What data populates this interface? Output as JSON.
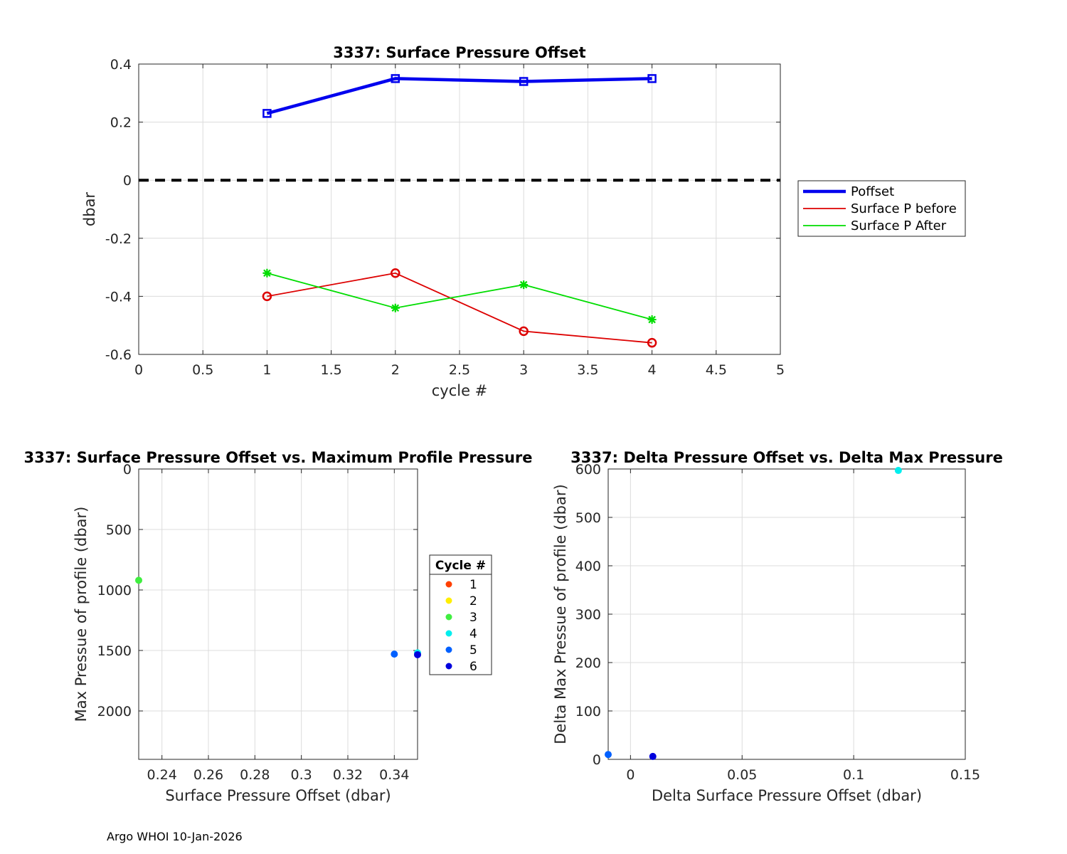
{
  "figure": {
    "footer": "Argo WHOI 10-Jan-2026"
  },
  "chart_data": [
    {
      "id": "top",
      "type": "line",
      "title": "3337: Surface Pressure Offset",
      "xlabel": "cycle #",
      "ylabel": "dbar",
      "xlim": [
        0,
        5
      ],
      "ylim": [
        -0.6,
        0.4
      ],
      "xticks": [
        0,
        0.5,
        1,
        1.5,
        2,
        2.5,
        3,
        3.5,
        4,
        4.5,
        5
      ],
      "yticks": [
        -0.6,
        -0.4,
        -0.2,
        0,
        0.2,
        0.4
      ],
      "xtick_labels": [
        "0",
        "0.5",
        "1",
        "1.5",
        "2",
        "2.5",
        "3",
        "3.5",
        "4",
        "4.5",
        "5"
      ],
      "ytick_labels": [
        "-0.6",
        "-0.4",
        "-0.2",
        "0",
        "0.2",
        "0.4"
      ],
      "grid": true,
      "zero_line": {
        "y": 0,
        "color": "#000000",
        "style": "dashed"
      },
      "legend_position": "outside-right",
      "series": [
        {
          "name": "Poffset",
          "color": "#0000ee",
          "marker": "square",
          "x": [
            1,
            2,
            3,
            4
          ],
          "y": [
            0.23,
            0.35,
            0.34,
            0.35
          ]
        },
        {
          "name": "Surface P before",
          "color": "#dd0000",
          "marker": "circle",
          "x": [
            1,
            2,
            3,
            4
          ],
          "y": [
            -0.4,
            -0.32,
            -0.52,
            -0.56
          ]
        },
        {
          "name": "Surface P After",
          "color": "#00dd00",
          "marker": "star",
          "x": [
            1,
            2,
            3,
            4
          ],
          "y": [
            -0.32,
            -0.44,
            -0.36,
            -0.48
          ]
        }
      ]
    },
    {
      "id": "bottom-left",
      "type": "scatter",
      "title": "3337: Surface Pressure Offset vs. Maximum Profile Pressure",
      "xlabel": "Surface Pressure Offset (dbar)",
      "ylabel": "Max Pressue of profile (dbar)",
      "xlim": [
        0.23,
        0.35
      ],
      "ylim": [
        0,
        2400
      ],
      "y_reversed": true,
      "xticks": [
        0.24,
        0.26,
        0.28,
        0.3,
        0.32,
        0.34
      ],
      "yticks": [
        0,
        500,
        1000,
        1500,
        2000
      ],
      "xtick_labels": [
        "0.24",
        "0.26",
        "0.28",
        "0.3",
        "0.32",
        "0.34"
      ],
      "ytick_labels": [
        "0",
        "500",
        "1000",
        "1500",
        "2000"
      ],
      "grid": true,
      "legend_title": "Cycle #",
      "legend_position": "right",
      "legend": [
        {
          "label": "1",
          "color": "#ff4000"
        },
        {
          "label": "2",
          "color": "#ffee00"
        },
        {
          "label": "3",
          "color": "#40ee40"
        },
        {
          "label": "4",
          "color": "#00eeee"
        },
        {
          "label": "5",
          "color": "#0060ff"
        },
        {
          "label": "6",
          "color": "#0000dd"
        }
      ],
      "points": [
        {
          "cycle": "3",
          "x": 0.23,
          "y": 920,
          "color": "#40ee40"
        },
        {
          "cycle": "4",
          "x": 0.35,
          "y": 1520,
          "color": "#00eeee"
        },
        {
          "cycle": "5",
          "x": 0.34,
          "y": 1530,
          "color": "#0060ff"
        },
        {
          "cycle": "6",
          "x": 0.35,
          "y": 1535,
          "color": "#0000dd"
        }
      ]
    },
    {
      "id": "bottom-right",
      "type": "scatter",
      "title": "3337: Delta Pressure Offset vs. Delta Max Pressure",
      "xlabel": "Delta Surface Pressure Offset (dbar)",
      "ylabel": "Delta Max Pressue of profile (dbar)",
      "xlim": [
        -0.01,
        0.15
      ],
      "ylim": [
        0,
        600
      ],
      "xticks": [
        0,
        0.05,
        0.1,
        0.15
      ],
      "yticks": [
        0,
        100,
        200,
        300,
        400,
        500,
        600
      ],
      "xtick_labels": [
        "0",
        "0.05",
        "0.1",
        "0.15"
      ],
      "ytick_labels": [
        "0",
        "100",
        "200",
        "300",
        "400",
        "500",
        "600"
      ],
      "grid": true,
      "points": [
        {
          "x": 0.12,
          "y": 597,
          "color": "#00eeee"
        },
        {
          "x": -0.01,
          "y": 10,
          "color": "#0060ff"
        },
        {
          "x": 0.01,
          "y": 6,
          "color": "#0000dd"
        }
      ]
    }
  ]
}
